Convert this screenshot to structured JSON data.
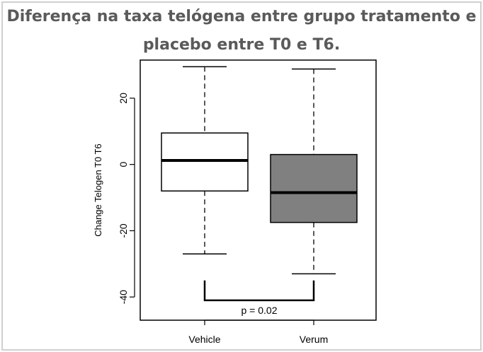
{
  "chart_data": {
    "type": "boxplot",
    "title_line1": "Diferença na taxa telógena entre grupo tratamento e",
    "title_line2": "placebo entre T0 e T6.",
    "ylabel": "Change Telogen T0 T6",
    "xlabel": "",
    "ylim": [
      -47,
      31.5
    ],
    "yticks": [
      20,
      0,
      -20,
      -40
    ],
    "grid": false,
    "categories": [
      "Vehicle",
      "Verum"
    ],
    "series": [
      {
        "category": "Vehicle",
        "whisker_low": -27,
        "q1": -8,
        "median": 1.2,
        "q3": 9.5,
        "whisker_high": 29.5,
        "fill": "#ffffff"
      },
      {
        "category": "Verum",
        "whisker_low": -33,
        "q1": -17.5,
        "median": -8.5,
        "q3": 3,
        "whisker_high": 28.8,
        "fill": "#808080"
      }
    ],
    "annotation": {
      "text": "p = 0.02",
      "bracket_top": -35,
      "bracket_bottom": -41
    }
  }
}
